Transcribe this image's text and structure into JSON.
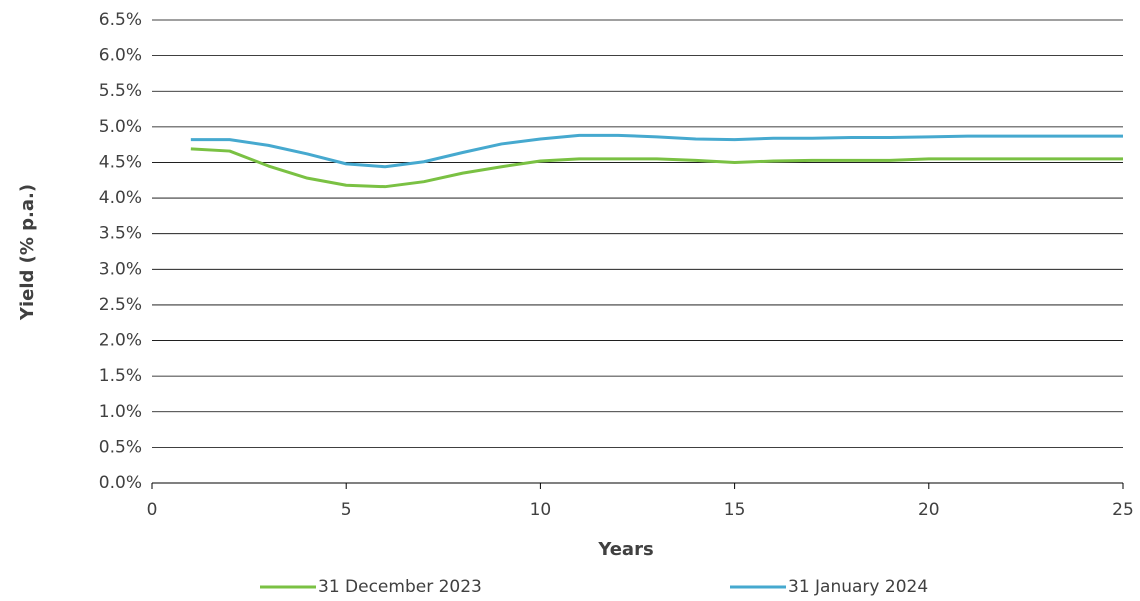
{
  "chart_data": {
    "type": "line",
    "x_label": "Years",
    "y_label": "Yield (% p.a.)",
    "x": [
      1,
      2,
      3,
      4,
      5,
      6,
      7,
      8,
      9,
      10,
      11,
      12,
      13,
      14,
      15,
      16,
      17,
      18,
      19,
      20,
      21,
      22,
      23,
      24,
      25
    ],
    "series": [
      {
        "name": "31 December 2023",
        "color": "#7ac143",
        "values": [
          4.69,
          4.66,
          4.45,
          4.28,
          4.18,
          4.16,
          4.23,
          4.35,
          4.44,
          4.52,
          4.55,
          4.55,
          4.55,
          4.53,
          4.5,
          4.52,
          4.53,
          4.53,
          4.53,
          4.55,
          4.55,
          4.55,
          4.55,
          4.55,
          4.55
        ]
      },
      {
        "name": "31 January 2024",
        "color": "#46a9cf",
        "values": [
          4.82,
          4.82,
          4.74,
          4.62,
          4.48,
          4.44,
          4.51,
          4.64,
          4.76,
          4.83,
          4.88,
          4.88,
          4.86,
          4.83,
          4.82,
          4.84,
          4.84,
          4.85,
          4.85,
          4.86,
          4.87,
          4.87,
          4.87,
          4.87,
          4.87
        ]
      }
    ],
    "xlim": [
      0,
      25
    ],
    "xticks": [
      0,
      5,
      10,
      15,
      20,
      25
    ],
    "ylim": [
      0,
      6.5
    ],
    "yticks": [
      {
        "value": 0,
        "label": "0.0%"
      },
      {
        "value": 0.5,
        "label": "0.5%"
      },
      {
        "value": 1,
        "label": "1.0%"
      },
      {
        "value": 1.5,
        "label": "1.5%"
      },
      {
        "value": 2,
        "label": "2.0%"
      },
      {
        "value": 2.5,
        "label": "2.5%"
      },
      {
        "value": 3,
        "label": "3.0%"
      },
      {
        "value": 3.5,
        "label": "3.5%"
      },
      {
        "value": 4,
        "label": "4.0%"
      },
      {
        "value": 4.5,
        "label": "4.5%"
      },
      {
        "value": 5,
        "label": "5.0%"
      },
      {
        "value": 5.5,
        "label": "5.5%"
      },
      {
        "value": 6,
        "label": "6.0%"
      },
      {
        "value": 6.5,
        "label": "6.5%"
      }
    ],
    "grid": true,
    "legend": "bottom"
  }
}
